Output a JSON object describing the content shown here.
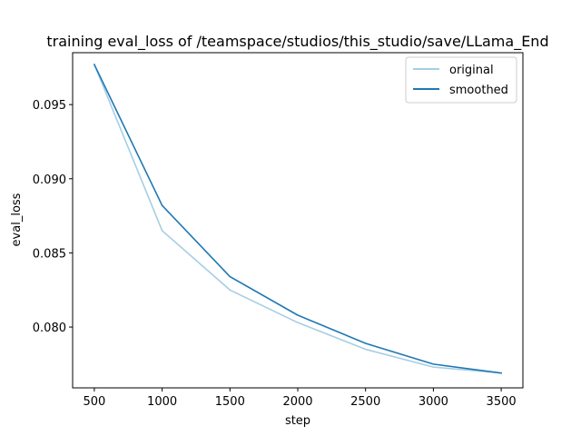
{
  "chart_data": {
    "type": "line",
    "title": "training eval_loss of /teamspace/studios/this_studio/save/LLama_End",
    "xlabel": "step",
    "ylabel": "eval_loss",
    "xlim": [
      340,
      3660
    ],
    "ylim": [
      0.0759,
      0.0985
    ],
    "x_ticks": [
      500,
      1000,
      1500,
      2000,
      2500,
      3000,
      3500
    ],
    "x_tick_labels": [
      "500",
      "1000",
      "1500",
      "2000",
      "2500",
      "3000",
      "3500"
    ],
    "y_ticks": [
      0.08,
      0.085,
      0.09,
      0.095
    ],
    "y_tick_labels": [
      "0.080",
      "0.085",
      "0.090",
      "0.095"
    ],
    "grid": false,
    "legend_position": "top-right",
    "x": [
      500,
      1000,
      1500,
      2000,
      2500,
      3000,
      3500
    ],
    "series": [
      {
        "name": "original",
        "color": "#a6cee3",
        "values": [
          0.0977,
          0.0865,
          0.0825,
          0.0803,
          0.0785,
          0.0773,
          0.0769
        ]
      },
      {
        "name": "smoothed",
        "color": "#1f78b4",
        "values": [
          0.0977,
          0.0882,
          0.0834,
          0.0808,
          0.0789,
          0.0775,
          0.0769
        ]
      }
    ]
  }
}
